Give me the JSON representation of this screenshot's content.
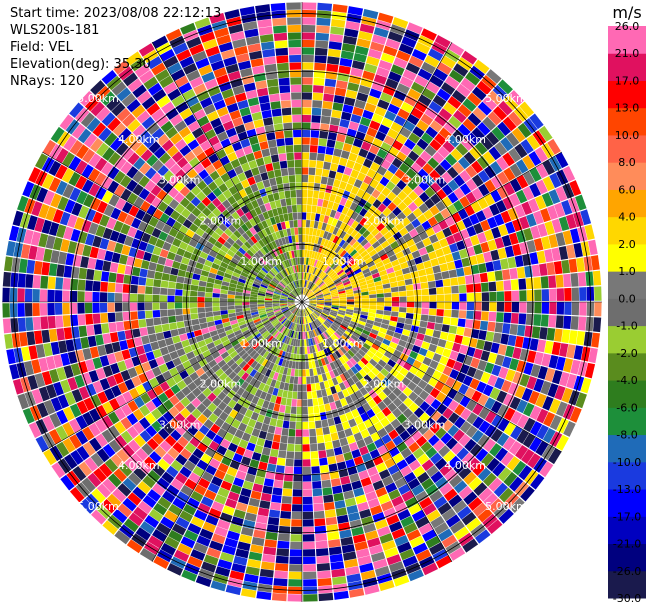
{
  "info": {
    "start_time": "Start time: 2023/08/08 22:12:13",
    "instrument": "WLS200s-181",
    "field": "Field: VEL",
    "elevation": "Elevation(deg): 35.30",
    "nrays": "NRays: 120"
  },
  "chart_data": {
    "type": "heatmap",
    "projection": "polar-ppi",
    "field": "VEL",
    "nrays": 120,
    "range_rings_km": [
      1,
      2,
      3,
      4,
      5
    ],
    "ring_labels": {
      "1": "1.00km",
      "2": "2.00km",
      "3": "3.00km",
      "4": "4.00km",
      "5": "5.00km"
    },
    "max_range_km": 5.2,
    "spokes_deg": [
      0,
      30,
      60,
      90,
      120,
      150,
      180,
      210,
      240,
      270,
      300,
      330
    ],
    "colorbar": {
      "unit": "m/s",
      "levels": [
        -30,
        -26,
        -21,
        -17,
        -13,
        -10,
        -8,
        -6,
        -4,
        -2,
        -1,
        0,
        1,
        2,
        4,
        6,
        8,
        10,
        13,
        17,
        21,
        26
      ],
      "tick_labels": [
        "-30.0",
        "-26.0",
        "-21.0",
        "-17.0",
        "-13.0",
        "-10.0",
        "-8.0",
        "-6.0",
        "-4.0",
        "-2.0",
        "-1.0",
        "0.0",
        "1.0",
        "2.0",
        "4.0",
        "6.0",
        "8.0",
        "10.0",
        "13.0",
        "17.0",
        "21.0",
        "26.0"
      ],
      "colors": [
        "#1a1a4d",
        "#00007f",
        "#0000c0",
        "#0000ff",
        "#1a3adf",
        "#1f6bb8",
        "#1d8f3a",
        "#2e7d1e",
        "#5a8c1e",
        "#9acd32",
        "#6e6e6e",
        "#787878",
        "#ffff00",
        "#ffd700",
        "#ffa500",
        "#ff8c5a",
        "#ff6347",
        "#ff4500",
        "#ff0000",
        "#e0115f",
        "#ff69b4"
      ]
    },
    "pattern": {
      "near_range_km": 2.6,
      "sectors": [
        {
          "from_deg": 0,
          "to_deg": 95,
          "dominant": [
            2,
            4
          ]
        },
        {
          "from_deg": 95,
          "to_deg": 180,
          "dominant": [
            0,
            2
          ]
        },
        {
          "from_deg": 180,
          "to_deg": 270,
          "dominant": [
            -2,
            0
          ]
        },
        {
          "from_deg": 270,
          "to_deg": 360,
          "dominant": [
            -4,
            -1
          ]
        }
      ]
    }
  }
}
